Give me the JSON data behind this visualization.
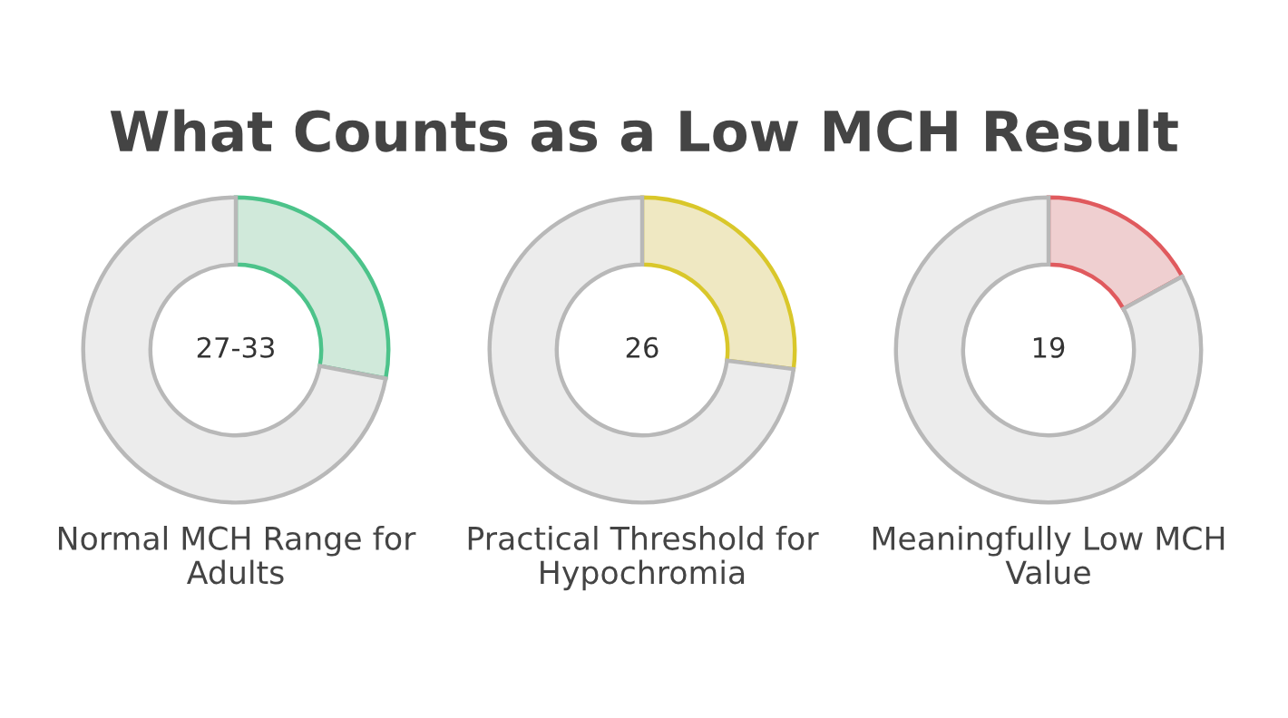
{
  "chart_data": [
    {
      "type": "donut",
      "title": "What Counts as a Low MCH Result",
      "categories": [
        null,
        null
      ],
      "values": [
        28,
        72
      ],
      "colors": [
        "#d0e9da",
        "#ececec"
      ],
      "annotations": [
        "27-33"
      ],
      "xlabel": "Normal MCH Range for\nAdults"
    },
    {
      "type": "donut",
      "categories": [
        null,
        null
      ],
      "values": [
        27,
        73
      ],
      "colors": [
        "#efe8c2",
        "#ececec"
      ],
      "annotations": [
        "26"
      ],
      "xlabel": "Practical Threshold for\nHypochromia"
    },
    {
      "type": "donut",
      "categories": [
        null,
        null
      ],
      "values": [
        17,
        83
      ],
      "colors": [
        "#efcfd0",
        "#ececec"
      ],
      "annotations": [
        "19"
      ],
      "xlabel": "Meaningfully Low MCH\nValue"
    }
  ]
}
